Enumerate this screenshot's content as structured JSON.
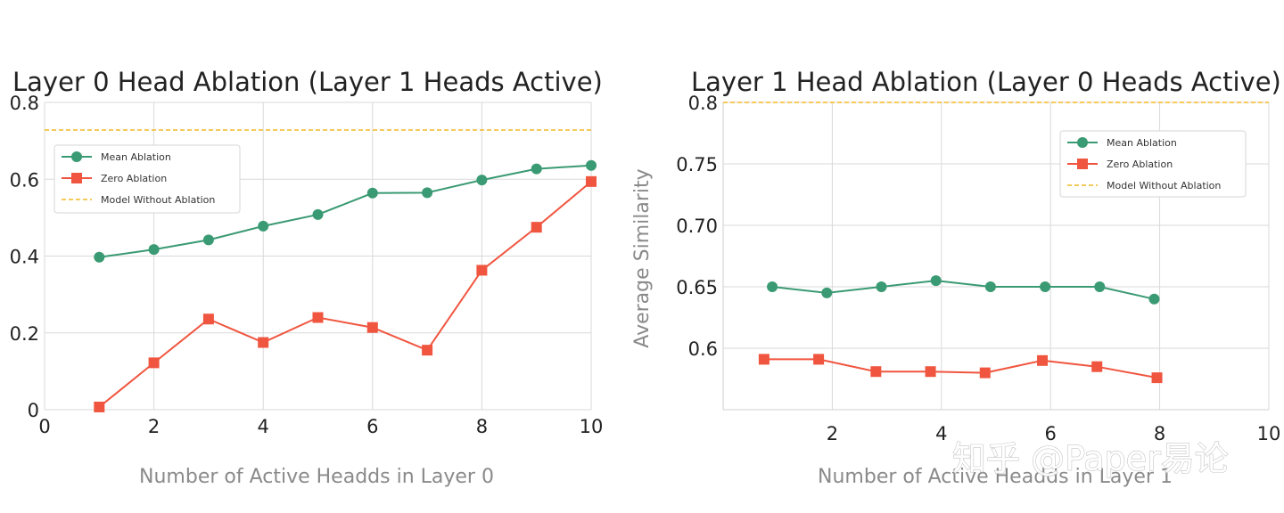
{
  "watermark": "知乎 @Paper易论",
  "chart_data": [
    {
      "type": "line",
      "title": "Layer 0 Head Ablation (Layer 1 Heads Active)",
      "xlabel": "Number of Active Headds in Layer 0",
      "ylabel": "",
      "xlim": [
        0,
        10
      ],
      "ylim": [
        0,
        0.8
      ],
      "xticks": [
        0,
        2,
        4,
        6,
        8,
        10
      ],
      "xtick_labels": [
        "0",
        "2",
        "4",
        "6",
        "8",
        "10"
      ],
      "yticks": [
        0,
        0.2,
        0.4,
        0.6,
        0.8
      ],
      "ytick_labels": [
        "0",
        "0.2",
        "0.4",
        "0.6",
        "0.8"
      ],
      "grid": true,
      "legend_position": "upper-left",
      "series": [
        {
          "name": "Mean Ablation",
          "marker": "circle",
          "color": "#3a9a73",
          "x": [
            1,
            2,
            3,
            4,
            5,
            6,
            7,
            8,
            9,
            10
          ],
          "y": [
            0.397,
            0.417,
            0.442,
            0.478,
            0.508,
            0.564,
            0.565,
            0.598,
            0.627,
            0.636
          ]
        },
        {
          "name": "Zero Ablation",
          "marker": "square",
          "color": "#f0553f",
          "x": [
            1,
            2,
            3,
            4,
            5,
            6,
            7,
            8,
            9,
            10
          ],
          "y": [
            0.007,
            0.122,
            0.236,
            0.175,
            0.24,
            0.214,
            0.155,
            0.363,
            0.475,
            0.594
          ]
        }
      ],
      "reference_line": {
        "name": "Model Without Ablation",
        "y": 0.728,
        "color": "#f2b823",
        "style": "dashed"
      }
    },
    {
      "type": "line",
      "title": "Layer 1 Head Ablation (Layer 0 Heads Active)",
      "xlabel": "Number of Active Headds in Layer 1",
      "ylabel": "Average Similarity",
      "xlim": [
        0,
        10
      ],
      "ylim": [
        0.55,
        0.8
      ],
      "xticks": [
        2,
        4,
        6,
        8,
        10
      ],
      "xtick_labels": [
        "2",
        "4",
        "6",
        "8",
        "10"
      ],
      "yticks": [
        0.6,
        0.65,
        0.7,
        0.75,
        0.8
      ],
      "ytick_labels": [
        "0.6",
        "0.65",
        "0.70",
        "0.75",
        "0.8"
      ],
      "grid": true,
      "legend_position": "upper-right",
      "series": [
        {
          "name": "Mean Ablation",
          "marker": "circle",
          "color": "#3a9a73",
          "x": [
            0.9,
            1.9,
            2.9,
            3.9,
            4.9,
            5.9,
            6.9,
            7.9
          ],
          "y": [
            0.65,
            0.645,
            0.65,
            0.655,
            0.65,
            0.65,
            0.65,
            0.64
          ]
        },
        {
          "name": "Zero Ablation",
          "marker": "square",
          "color": "#f0553f",
          "x": [
            0.75,
            1.75,
            2.8,
            3.8,
            4.8,
            5.85,
            6.85,
            7.95
          ],
          "y": [
            0.591,
            0.591,
            0.581,
            0.581,
            0.58,
            0.59,
            0.585,
            0.576
          ]
        }
      ],
      "reference_line": {
        "name": "Model Without Ablation",
        "y": 0.8,
        "color": "#f2b823",
        "style": "dashed"
      }
    }
  ]
}
